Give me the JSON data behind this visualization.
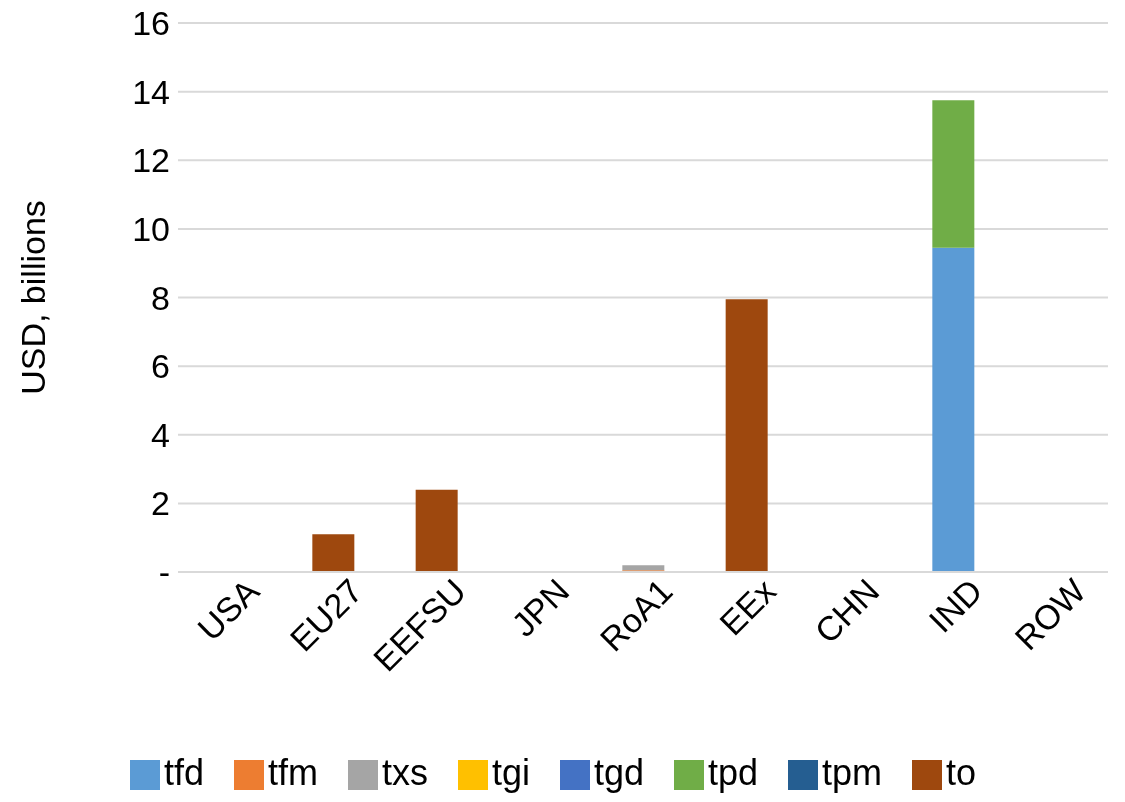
{
  "chart_data": {
    "type": "bar",
    "stacked": true,
    "ylabel": "USD, billions",
    "categories": [
      "USA",
      "EU27",
      "EEFSU",
      "JPN",
      "RoA1",
      "EEx",
      "CHN",
      "IND",
      "ROW"
    ],
    "series": [
      {
        "name": "tfd",
        "color": "#5b9bd5",
        "values": [
          null,
          null,
          null,
          null,
          null,
          null,
          null,
          9.45,
          null
        ]
      },
      {
        "name": "tfm",
        "color": "#ed7d31",
        "values": [
          null,
          null,
          null,
          null,
          0.05,
          null,
          null,
          null,
          null
        ]
      },
      {
        "name": "txs",
        "color": "#a5a5a5",
        "values": [
          null,
          null,
          null,
          null,
          0.15,
          null,
          null,
          null,
          null
        ]
      },
      {
        "name": "tgi",
        "color": "#ffc000",
        "values": [
          null,
          null,
          null,
          null,
          null,
          null,
          null,
          null,
          null
        ]
      },
      {
        "name": "tgd",
        "color": "#4472c4",
        "values": [
          null,
          null,
          null,
          null,
          null,
          null,
          null,
          null,
          null
        ]
      },
      {
        "name": "tpd",
        "color": "#70ad47",
        "values": [
          null,
          null,
          null,
          null,
          null,
          null,
          null,
          4.3,
          null
        ]
      },
      {
        "name": "tpm",
        "color": "#255e91",
        "values": [
          null,
          null,
          null,
          null,
          null,
          null,
          null,
          null,
          null
        ]
      },
      {
        "name": "to",
        "color": "#9e480e",
        "values": [
          null,
          1.1,
          2.4,
          null,
          null,
          7.95,
          null,
          null,
          null
        ]
      }
    ],
    "ylim": [
      0,
      16
    ],
    "yticks": [
      {
        "value": 0,
        "label": "-"
      },
      2,
      4,
      6,
      8,
      10,
      12,
      14,
      16
    ],
    "grid": "y",
    "legend": "bottom"
  }
}
